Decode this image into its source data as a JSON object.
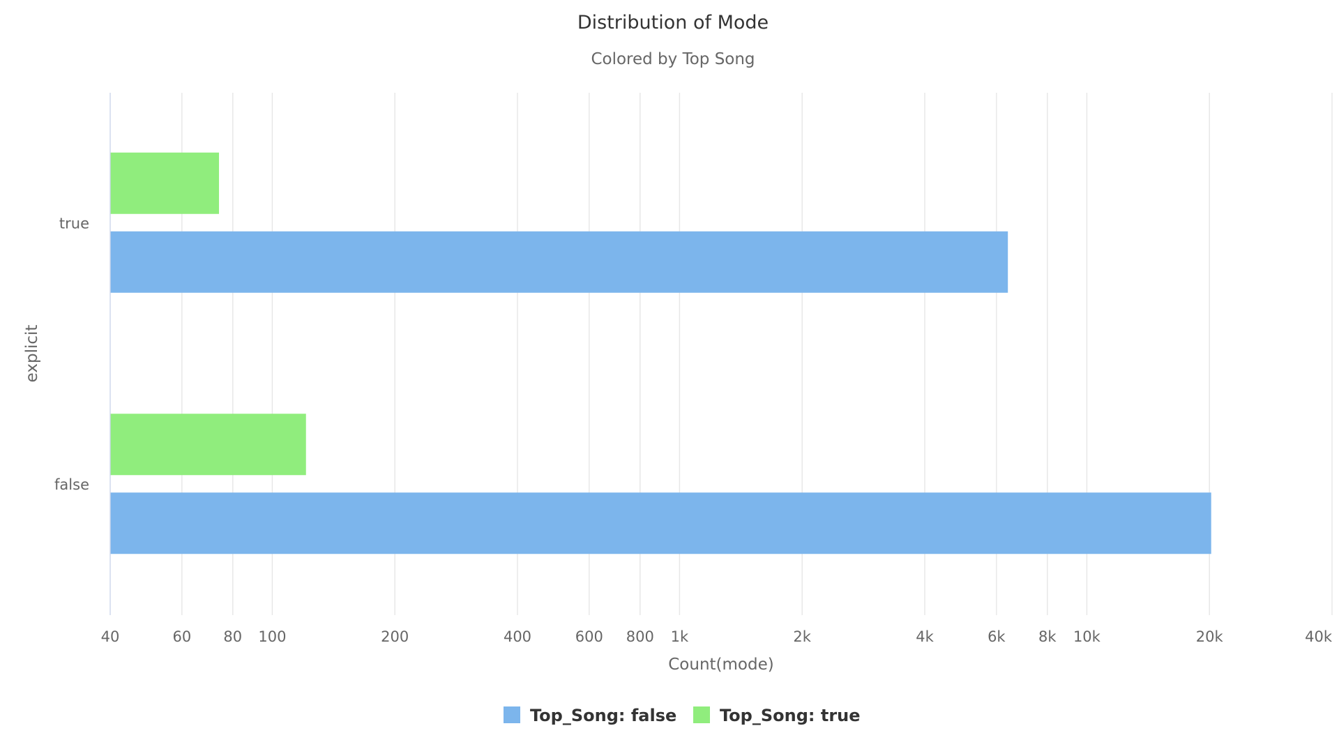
{
  "chart_data": {
    "type": "bar",
    "orientation": "horizontal",
    "title": "Distribution of Mode",
    "subtitle": "Colored by Top Song",
    "xlabel": "Count(mode)",
    "ylabel": "explicit",
    "xscale": "log",
    "xlim": [
      40,
      40000
    ],
    "categories": [
      "true",
      "false"
    ],
    "x_ticks": [
      {
        "value": 40,
        "label": "40"
      },
      {
        "value": 60,
        "label": "60"
      },
      {
        "value": 80,
        "label": "80"
      },
      {
        "value": 100,
        "label": "100"
      },
      {
        "value": 200,
        "label": "200"
      },
      {
        "value": 400,
        "label": "400"
      },
      {
        "value": 600,
        "label": "600"
      },
      {
        "value": 800,
        "label": "800"
      },
      {
        "value": 1000,
        "label": "1k"
      },
      {
        "value": 2000,
        "label": "2k"
      },
      {
        "value": 4000,
        "label": "4k"
      },
      {
        "value": 6000,
        "label": "6k"
      },
      {
        "value": 8000,
        "label": "8k"
      },
      {
        "value": 10000,
        "label": "10k"
      },
      {
        "value": 20000,
        "label": "20k"
      },
      {
        "value": 40000,
        "label": "40k"
      }
    ],
    "series": [
      {
        "name": "Top_Song: false",
        "color": "#7cb5ec",
        "values": [
          6400,
          20200
        ]
      },
      {
        "name": "Top_Song: true",
        "color": "#90ed7d",
        "values": [
          74,
          121
        ]
      }
    ],
    "grid": true,
    "legend_position": "bottom-center"
  }
}
